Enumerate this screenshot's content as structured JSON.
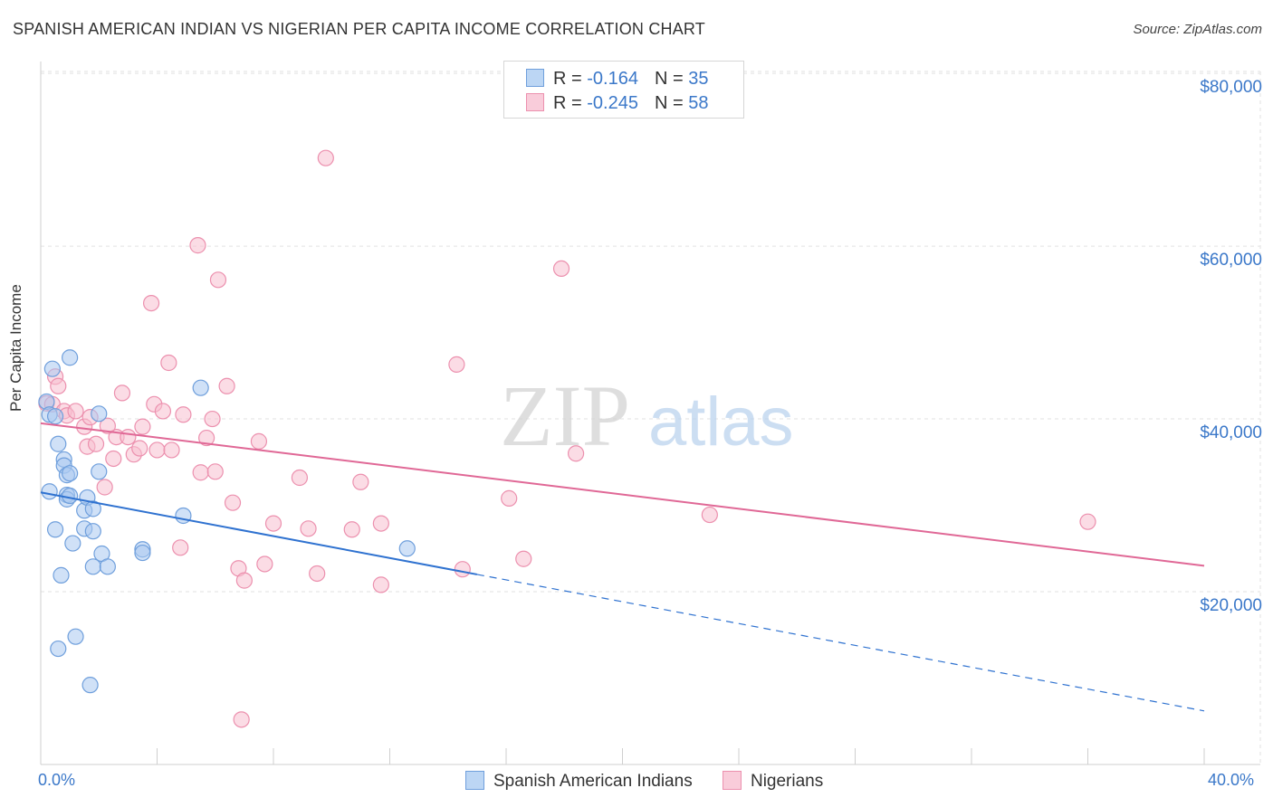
{
  "title": "SPANISH AMERICAN INDIAN VS NIGERIAN PER CAPITA INCOME CORRELATION CHART",
  "source": "Source: ZipAtlas.com",
  "watermark": {
    "zip": "ZIP",
    "atlas": "atlas"
  },
  "legend_top": [
    {
      "r_label": "R =",
      "r_value": "-0.164",
      "n_label": "N =",
      "n_value": "35"
    },
    {
      "r_label": "R =",
      "r_value": "-0.245",
      "n_label": "N =",
      "n_value": "58"
    }
  ],
  "colors": {
    "blue_fill": "#a9c8f0",
    "blue_stroke": "#6f9fdc",
    "blue_line": "#2f72d0",
    "pink_fill": "#f7bfd0",
    "pink_stroke": "#ec90ae",
    "pink_line": "#e06896",
    "grid": "#e2e2e2",
    "tick_text": "#3b78c9"
  },
  "chart_data": {
    "type": "scatter",
    "title": "SPANISH AMERICAN INDIAN VS NIGERIAN PER CAPITA INCOME CORRELATION CHART",
    "xlabel": "",
    "ylabel": "Per Capita Income",
    "xlim": [
      0,
      40
    ],
    "ylim": [
      0,
      82000
    ],
    "x_tick_labels": [
      "0.0%",
      "40.0%"
    ],
    "y_ticks": [
      20000,
      40000,
      60000,
      80000
    ],
    "y_tick_labels": [
      "$20,000",
      "$40,000",
      "$60,000",
      "$80,000"
    ],
    "grid": true,
    "legend_position": "bottom",
    "series": [
      {
        "name": "Spanish American Indians",
        "r": -0.164,
        "n": 35,
        "trend": {
          "x0": 0,
          "y0": 31500,
          "x1": 15,
          "y1": 22000,
          "dashed_to_x": 40,
          "dashed_to_y": 6200
        },
        "points": [
          [
            0.2,
            42000
          ],
          [
            0.3,
            40500
          ],
          [
            0.3,
            31600
          ],
          [
            0.4,
            45800
          ],
          [
            0.5,
            40300
          ],
          [
            0.5,
            27200
          ],
          [
            0.6,
            37100
          ],
          [
            0.6,
            13400
          ],
          [
            0.7,
            21900
          ],
          [
            0.8,
            35300
          ],
          [
            0.8,
            34600
          ],
          [
            0.9,
            33500
          ],
          [
            0.9,
            31200
          ],
          [
            0.9,
            30700
          ],
          [
            1.0,
            31100
          ],
          [
            1.0,
            47100
          ],
          [
            1.0,
            33700
          ],
          [
            1.1,
            25600
          ],
          [
            1.2,
            14800
          ],
          [
            1.5,
            27300
          ],
          [
            1.5,
            29400
          ],
          [
            1.6,
            30900
          ],
          [
            1.7,
            9200
          ],
          [
            1.8,
            27000
          ],
          [
            1.8,
            29600
          ],
          [
            1.8,
            22900
          ],
          [
            2.0,
            40600
          ],
          [
            2.1,
            24400
          ],
          [
            2.3,
            22900
          ],
          [
            3.5,
            24900
          ],
          [
            3.5,
            24500
          ],
          [
            4.9,
            28800
          ],
          [
            5.5,
            43600
          ],
          [
            12.6,
            25000
          ],
          [
            2.0,
            33900
          ]
        ]
      },
      {
        "name": "Nigerians",
        "r": -0.245,
        "n": 58,
        "trend": {
          "x0": 0,
          "y0": 39500,
          "x1": 40,
          "y1": 23000
        },
        "points": [
          [
            0.2,
            41800
          ],
          [
            0.4,
            41700
          ],
          [
            0.5,
            44900
          ],
          [
            0.6,
            43800
          ],
          [
            0.8,
            40900
          ],
          [
            0.9,
            40400
          ],
          [
            1.2,
            40900
          ],
          [
            1.5,
            39100
          ],
          [
            1.6,
            36800
          ],
          [
            1.7,
            40200
          ],
          [
            1.9,
            37100
          ],
          [
            2.2,
            32100
          ],
          [
            2.5,
            35400
          ],
          [
            2.8,
            43000
          ],
          [
            2.6,
            37900
          ],
          [
            3.0,
            37900
          ],
          [
            3.2,
            35900
          ],
          [
            3.4,
            36600
          ],
          [
            3.5,
            39100
          ],
          [
            3.8,
            53400
          ],
          [
            3.9,
            41700
          ],
          [
            4.0,
            36400
          ],
          [
            4.2,
            40900
          ],
          [
            4.4,
            46500
          ],
          [
            4.5,
            36400
          ],
          [
            4.8,
            25100
          ],
          [
            4.9,
            40500
          ],
          [
            5.4,
            60100
          ],
          [
            5.5,
            33800
          ],
          [
            5.7,
            37800
          ],
          [
            5.9,
            40000
          ],
          [
            6.0,
            33900
          ],
          [
            6.1,
            56100
          ],
          [
            6.4,
            43800
          ],
          [
            6.6,
            30300
          ],
          [
            6.8,
            22700
          ],
          [
            6.9,
            5200
          ],
          [
            7.0,
            21300
          ],
          [
            7.5,
            37400
          ],
          [
            7.7,
            23200
          ],
          [
            8.0,
            27900
          ],
          [
            8.9,
            33200
          ],
          [
            9.2,
            27300
          ],
          [
            9.5,
            22100
          ],
          [
            9.8,
            70200
          ],
          [
            10.7,
            27200
          ],
          [
            11.0,
            32700
          ],
          [
            11.7,
            27900
          ],
          [
            11.7,
            20800
          ],
          [
            14.3,
            46300
          ],
          [
            14.5,
            22600
          ],
          [
            16.1,
            30800
          ],
          [
            16.6,
            23800
          ],
          [
            17.9,
            57400
          ],
          [
            18.4,
            36000
          ],
          [
            23.0,
            28900
          ],
          [
            36.0,
            28100
          ],
          [
            2.3,
            39200
          ]
        ]
      }
    ]
  }
}
